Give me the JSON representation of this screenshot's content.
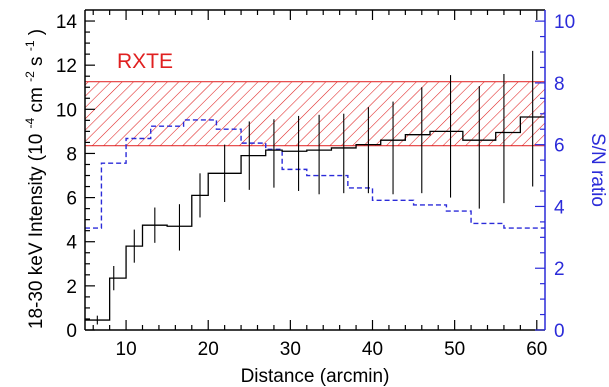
{
  "chart_data": {
    "type": "line",
    "xlabel": "Distance (arcmin)",
    "ylabel_left": "18-30 keV Intensity",
    "ylabel_left_units": [
      "(10",
      "-4",
      " cm",
      "-2",
      " s",
      "-1",
      ")"
    ],
    "ylabel_right": "S/N ratio",
    "xlim": [
      5,
      61
    ],
    "ylim_left": [
      0,
      14.5
    ],
    "ylim_right": [
      0,
      10.36
    ],
    "x_ticks": [
      10,
      20,
      30,
      40,
      50,
      60
    ],
    "y_left_ticks": [
      0,
      2,
      4,
      6,
      8,
      10,
      12,
      14
    ],
    "y_right_ticks": [
      0,
      2,
      4,
      6,
      8,
      10
    ],
    "band": {
      "label": "RXTE",
      "y_low": 8.35,
      "y_high": 11.25,
      "color": "#e02020",
      "pattern": "diagonal-hatch"
    },
    "intensity": {
      "color": "#000000",
      "style": "step-histogram",
      "x": [
        6.5,
        8.5,
        11,
        13.5,
        16.5,
        19,
        22,
        25,
        28,
        31,
        33.5,
        36.5,
        39.5,
        42.5,
        46,
        49.5,
        53,
        56,
        59.5
      ],
      "edges": [
        5,
        8,
        10,
        12,
        15,
        18,
        20,
        24,
        27,
        29,
        32,
        35,
        38,
        41,
        44,
        47,
        51,
        55,
        58,
        61
      ],
      "y": [
        0.45,
        2.35,
        3.8,
        4.75,
        4.7,
        6.1,
        7.1,
        7.9,
        8.15,
        8.1,
        8.15,
        8.25,
        8.4,
        8.6,
        8.85,
        9.0,
        8.6,
        8.95,
        9.65
      ],
      "err_low": [
        0.2,
        0.55,
        0.75,
        0.8,
        1.1,
        1.0,
        1.3,
        1.55,
        1.7,
        1.8,
        2.0,
        2.05,
        2.2,
        2.45,
        2.65,
        3.0,
        3.1,
        3.2,
        3.15
      ],
      "err_high": [
        0.2,
        0.55,
        0.75,
        0.8,
        1.0,
        1.0,
        1.3,
        1.55,
        1.4,
        1.6,
        1.6,
        1.55,
        1.7,
        1.75,
        2.15,
        2.55,
        2.45,
        2.65,
        3.0
      ]
    },
    "snr": {
      "color": "#2b2bd9",
      "style": "dashed-step",
      "edges": [
        5,
        7,
        10,
        13,
        17,
        21,
        24,
        27,
        29,
        32,
        37,
        40,
        45,
        49,
        52,
        56,
        61
      ],
      "y": [
        3.3,
        5.4,
        6.2,
        6.6,
        6.8,
        6.5,
        6.05,
        5.85,
        5.2,
        5.0,
        4.6,
        4.2,
        4.05,
        3.85,
        3.45,
        3.3
      ]
    }
  }
}
